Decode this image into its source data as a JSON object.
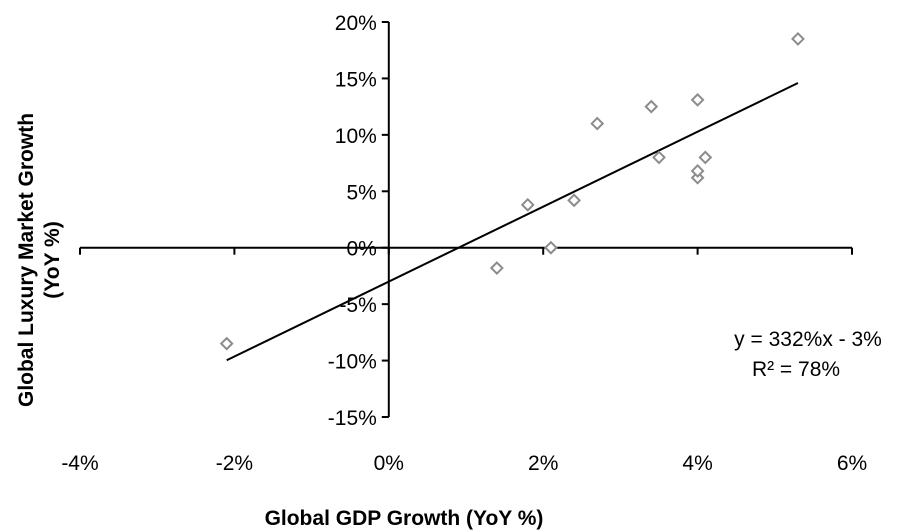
{
  "chart_data": {
    "type": "scatter",
    "title": "",
    "xlabel": "Global GDP Growth (YoY  %)",
    "ylabel_line1": "Global Luxury Market Growth",
    "ylabel_line2": "(YoY %)",
    "xlim": [
      -0.04,
      0.06
    ],
    "ylim": [
      -0.15,
      0.2
    ],
    "x_ticks": [
      {
        "value": -0.04,
        "label": "-4%"
      },
      {
        "value": -0.02,
        "label": "-2%"
      },
      {
        "value": 0.0,
        "label": "0%"
      },
      {
        "value": 0.02,
        "label": "2%"
      },
      {
        "value": 0.04,
        "label": "4%"
      },
      {
        "value": 0.06,
        "label": "6%"
      }
    ],
    "y_ticks": [
      {
        "value": 0.2,
        "label": "20%"
      },
      {
        "value": 0.15,
        "label": "15%"
      },
      {
        "value": 0.1,
        "label": "10%"
      },
      {
        "value": 0.05,
        "label": "5%"
      },
      {
        "value": 0.0,
        "label": "0%"
      },
      {
        "value": -0.05,
        "label": "-5%"
      },
      {
        "value": -0.1,
        "label": "-10%"
      },
      {
        "value": -0.15,
        "label": "-15%"
      }
    ],
    "points": [
      {
        "x": -0.021,
        "y": -0.085
      },
      {
        "x": 0.014,
        "y": -0.018
      },
      {
        "x": 0.018,
        "y": 0.038
      },
      {
        "x": 0.021,
        "y": 0.0
      },
      {
        "x": 0.024,
        "y": 0.042
      },
      {
        "x": 0.027,
        "y": 0.11
      },
      {
        "x": 0.034,
        "y": 0.125
      },
      {
        "x": 0.035,
        "y": 0.08
      },
      {
        "x": 0.04,
        "y": 0.062
      },
      {
        "x": 0.04,
        "y": 0.068
      },
      {
        "x": 0.04,
        "y": 0.131
      },
      {
        "x": 0.041,
        "y": 0.08
      },
      {
        "x": 0.053,
        "y": 0.185
      }
    ],
    "trendline": {
      "slope": 3.32,
      "intercept": -0.03,
      "x_start": -0.021,
      "x_end": 0.053
    },
    "equation_label": "y = 332%x - 3%",
    "r2_label": "R² = 78%",
    "marker_color": "#8c8c8c",
    "line_color": "#000000",
    "grid": false,
    "legend": "none"
  }
}
